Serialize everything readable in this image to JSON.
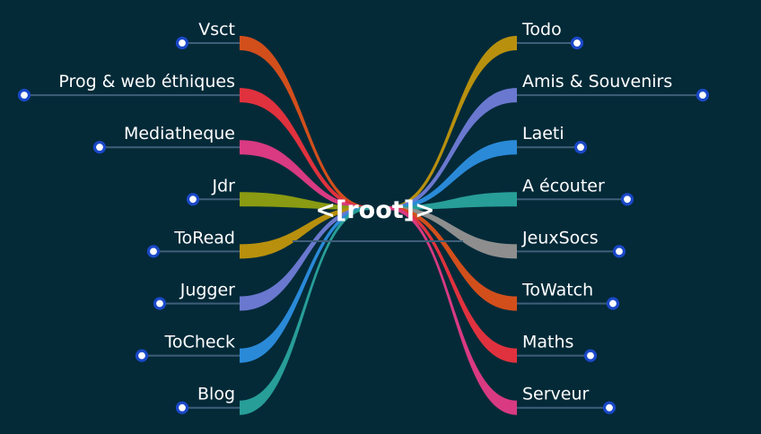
{
  "root": {
    "label": "<[root]>"
  },
  "left_branches": [
    {
      "label": "Vsct",
      "color": "#d24f1c"
    },
    {
      "label": "Prog & web éthiques",
      "color": "#e0323e"
    },
    {
      "label": "Mediatheque",
      "color": "#d93a82"
    },
    {
      "label": "Jdr",
      "color": "#8a9a12"
    },
    {
      "label": "ToRead",
      "color": "#b8900e"
    },
    {
      "label": "Jugger",
      "color": "#6a78cf"
    },
    {
      "label": "ToCheck",
      "color": "#2a8ad8"
    },
    {
      "label": "Blog",
      "color": "#289e98"
    }
  ],
  "right_branches": [
    {
      "label": "Todo",
      "color": "#b8900e"
    },
    {
      "label": "Amis & Souvenirs",
      "color": "#6a78cf"
    },
    {
      "label": "Laeti",
      "color": "#2a8ad8"
    },
    {
      "label": "A écouter",
      "color": "#289e98"
    },
    {
      "label": "JeuxSocs",
      "color": "#8e8e8e"
    },
    {
      "label": "ToWatch",
      "color": "#d24f1c"
    },
    {
      "label": "Maths",
      "color": "#e0323e"
    },
    {
      "label": "Serveur",
      "color": "#d93a82"
    }
  ],
  "colors": {
    "background": "#042a38",
    "node_dot": "#1a48c8",
    "underline": "#3f5e7a"
  }
}
